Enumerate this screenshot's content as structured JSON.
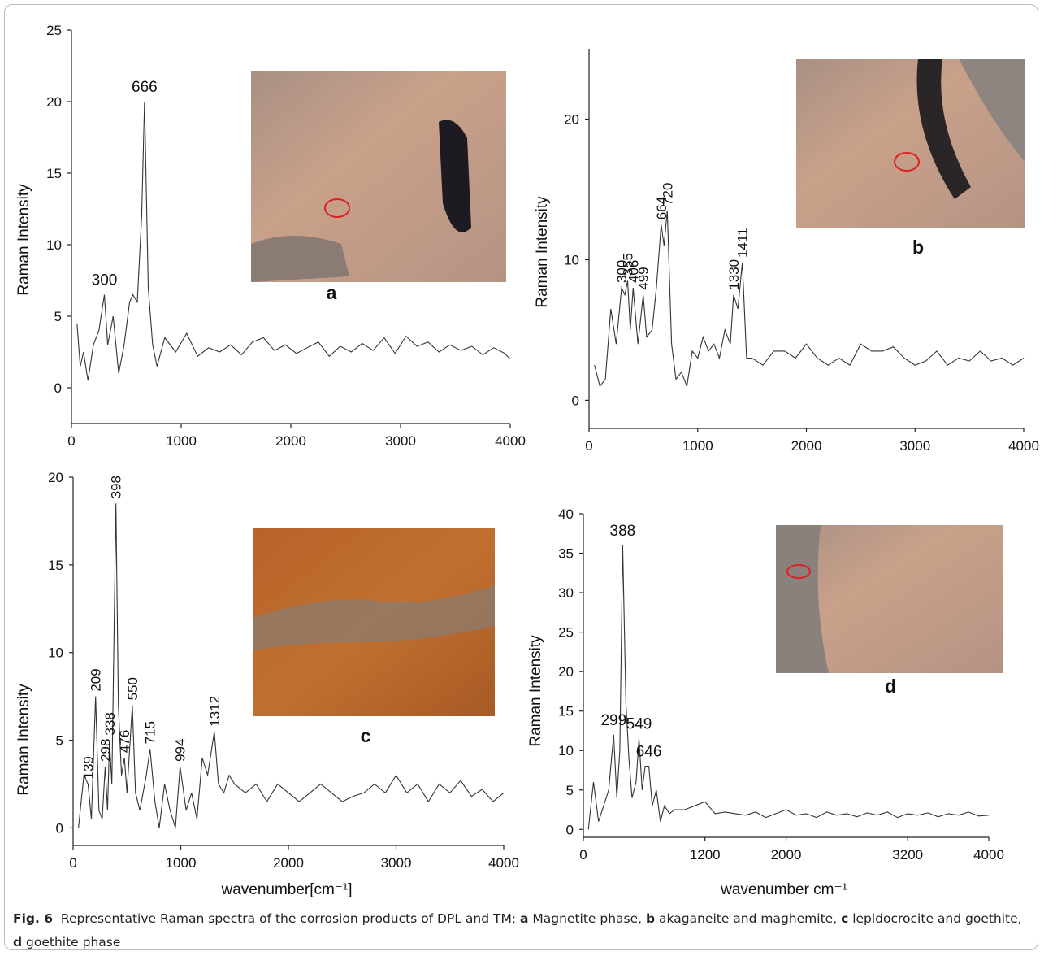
{
  "chart_data": [
    {
      "type": "line",
      "panel": "a",
      "ylabel": "Raman Intensity",
      "color": "#333333",
      "xlim": [
        0,
        4000
      ],
      "xticks": [
        0,
        1000,
        2000,
        3000,
        4000
      ],
      "ylim": [
        -2.5,
        25
      ],
      "yticks": [
        0,
        5,
        10,
        15,
        20,
        25
      ],
      "peak_labels": [
        300,
        666
      ],
      "x": [
        50,
        80,
        110,
        150,
        200,
        250,
        300,
        330,
        380,
        430,
        480,
        530,
        560,
        600,
        640,
        666,
        700,
        740,
        780,
        850,
        950,
        1050,
        1150,
        1250,
        1350,
        1450,
        1550,
        1650,
        1750,
        1850,
        1950,
        2050,
        2150,
        2250,
        2350,
        2450,
        2550,
        2650,
        2750,
        2850,
        2950,
        3050,
        3150,
        3250,
        3350,
        3450,
        3550,
        3650,
        3750,
        3850,
        3950,
        4000
      ],
      "values": [
        4.5,
        1.5,
        2.5,
        0.5,
        3,
        4,
        6.5,
        3,
        5,
        1,
        3,
        6,
        6.5,
        6,
        12,
        20,
        7,
        3,
        1.5,
        3.5,
        2.5,
        3.8,
        2.2,
        2.8,
        2.5,
        3,
        2.3,
        3.2,
        3.5,
        2.6,
        3,
        2.4,
        2.8,
        3.2,
        2.2,
        2.9,
        2.5,
        3.1,
        2.6,
        3.5,
        2.4,
        3.6,
        2.9,
        3.2,
        2.5,
        3,
        2.6,
        2.9,
        2.3,
        2.8,
        2.4,
        2
      ]
    },
    {
      "type": "line",
      "panel": "b",
      "ylabel": "Raman Intensity",
      "color": "#333333",
      "xlim": [
        0,
        4000
      ],
      "xticks": [
        0,
        1000,
        2000,
        3000,
        4000
      ],
      "ylim": [
        -2,
        25
      ],
      "yticks": [
        0,
        10,
        20
      ],
      "peak_labels": [
        300,
        355,
        406,
        499,
        664,
        720,
        1330,
        1411
      ],
      "x": [
        50,
        100,
        150,
        200,
        250,
        300,
        330,
        355,
        380,
        406,
        450,
        499,
        530,
        580,
        620,
        664,
        690,
        720,
        760,
        800,
        850,
        900,
        950,
        1000,
        1050,
        1100,
        1150,
        1200,
        1250,
        1300,
        1330,
        1370,
        1411,
        1450,
        1500,
        1600,
        1700,
        1800,
        1900,
        2000,
        2100,
        2200,
        2300,
        2400,
        2500,
        2600,
        2700,
        2800,
        2900,
        3000,
        3100,
        3200,
        3300,
        3400,
        3500,
        3600,
        3700,
        3800,
        3900,
        4000
      ],
      "values": [
        2.5,
        1,
        1.5,
        6.5,
        4,
        8,
        7.5,
        8.5,
        5,
        8,
        4,
        7.5,
        4.5,
        5,
        8,
        12.5,
        11,
        13.5,
        4,
        1.5,
        2,
        1,
        3.5,
        3,
        4.5,
        3.5,
        4,
        3,
        5,
        4,
        7.5,
        6.5,
        9.8,
        3,
        3,
        2.5,
        3.5,
        3.5,
        3,
        4,
        3,
        2.5,
        3,
        2.5,
        4,
        3.5,
        3.5,
        3.8,
        3,
        2.5,
        2.8,
        3.5,
        2.5,
        3,
        2.8,
        3.5,
        2.8,
        3,
        2.5,
        3
      ]
    },
    {
      "type": "line",
      "panel": "c",
      "ylabel": "Raman Intensity",
      "xlabel": "wavenumber[cm⁻¹]",
      "color": "#333333",
      "xlim": [
        0,
        4000
      ],
      "xticks": [
        0,
        1000,
        2000,
        3000,
        4000
      ],
      "ylim": [
        -1,
        20
      ],
      "yticks": [
        0,
        5,
        10,
        15,
        20
      ],
      "peak_labels": [
        139,
        209,
        298,
        338,
        398,
        476,
        550,
        715,
        994,
        1312
      ],
      "x": [
        50,
        100,
        139,
        170,
        209,
        240,
        270,
        298,
        320,
        338,
        360,
        398,
        420,
        450,
        476,
        500,
        550,
        580,
        620,
        680,
        715,
        760,
        800,
        850,
        900,
        950,
        994,
        1050,
        1100,
        1150,
        1200,
        1250,
        1312,
        1350,
        1400,
        1450,
        1500,
        1600,
        1700,
        1800,
        1900,
        2000,
        2100,
        2200,
        2300,
        2400,
        2500,
        2600,
        2700,
        2800,
        2900,
        3000,
        3100,
        3200,
        3300,
        3400,
        3500,
        3600,
        3700,
        3800,
        3900,
        4000
      ],
      "values": [
        0,
        3,
        2.5,
        0.5,
        7.5,
        1,
        0.5,
        3.5,
        1,
        5,
        2.5,
        18.5,
        7,
        3,
        4,
        2,
        7,
        2,
        1,
        3,
        4.5,
        1.5,
        0,
        2.5,
        1,
        0,
        3.5,
        1,
        2,
        0.5,
        4,
        3,
        5.5,
        2.5,
        2,
        3,
        2.5,
        2,
        2.5,
        1.5,
        2.5,
        2,
        1.5,
        2,
        2.5,
        2,
        1.5,
        1.8,
        2,
        2.5,
        2,
        3,
        2,
        2.5,
        1.5,
        2.5,
        2,
        2.7,
        1.8,
        2.2,
        1.5,
        2
      ]
    },
    {
      "type": "line",
      "panel": "d",
      "ylabel": "Raman Intensity",
      "xlabel": "wavenumber cm⁻¹",
      "color": "#333333",
      "xlim": [
        0,
        4000
      ],
      "xticks": [
        0,
        1200,
        2000,
        3200,
        4000
      ],
      "ylim": [
        -1,
        40
      ],
      "yticks": [
        0,
        5,
        10,
        15,
        20,
        25,
        30,
        35,
        40
      ],
      "peak_labels": [
        299,
        388,
        549,
        646
      ],
      "x": [
        50,
        100,
        150,
        200,
        250,
        299,
        330,
        360,
        388,
        420,
        450,
        480,
        520,
        549,
        580,
        610,
        646,
        680,
        720,
        760,
        800,
        850,
        900,
        1000,
        1100,
        1200,
        1300,
        1400,
        1500,
        1600,
        1700,
        1800,
        1900,
        2000,
        2100,
        2200,
        2300,
        2400,
        2500,
        2600,
        2700,
        2800,
        2900,
        3000,
        3100,
        3200,
        3300,
        3400,
        3500,
        3600,
        3700,
        3800,
        3900,
        4000
      ],
      "values": [
        0,
        6,
        1,
        3,
        5,
        12,
        4,
        10,
        36,
        16,
        9,
        4,
        6,
        11.5,
        5,
        8,
        8,
        3,
        5,
        1,
        3,
        2,
        2.5,
        2.5,
        3,
        3.5,
        2,
        2.2,
        2,
        1.8,
        2.2,
        1.5,
        2,
        2.5,
        1.8,
        2,
        1.5,
        2.2,
        1.8,
        2,
        1.6,
        2.1,
        1.8,
        2.2,
        1.5,
        2,
        1.8,
        2.1,
        1.6,
        2,
        1.8,
        2.2,
        1.7,
        1.8
      ]
    }
  ],
  "caption": [
    "Fig. 6",
    "  Representative Raman spectra of the corrosion products of DPL and TM; ",
    "a",
    " Magnetite phase, ",
    "b",
    " akaganeite and maghemite, ",
    "c",
    " lepidocrocite and goethite, ",
    "d",
    " goethite phase"
  ]
}
